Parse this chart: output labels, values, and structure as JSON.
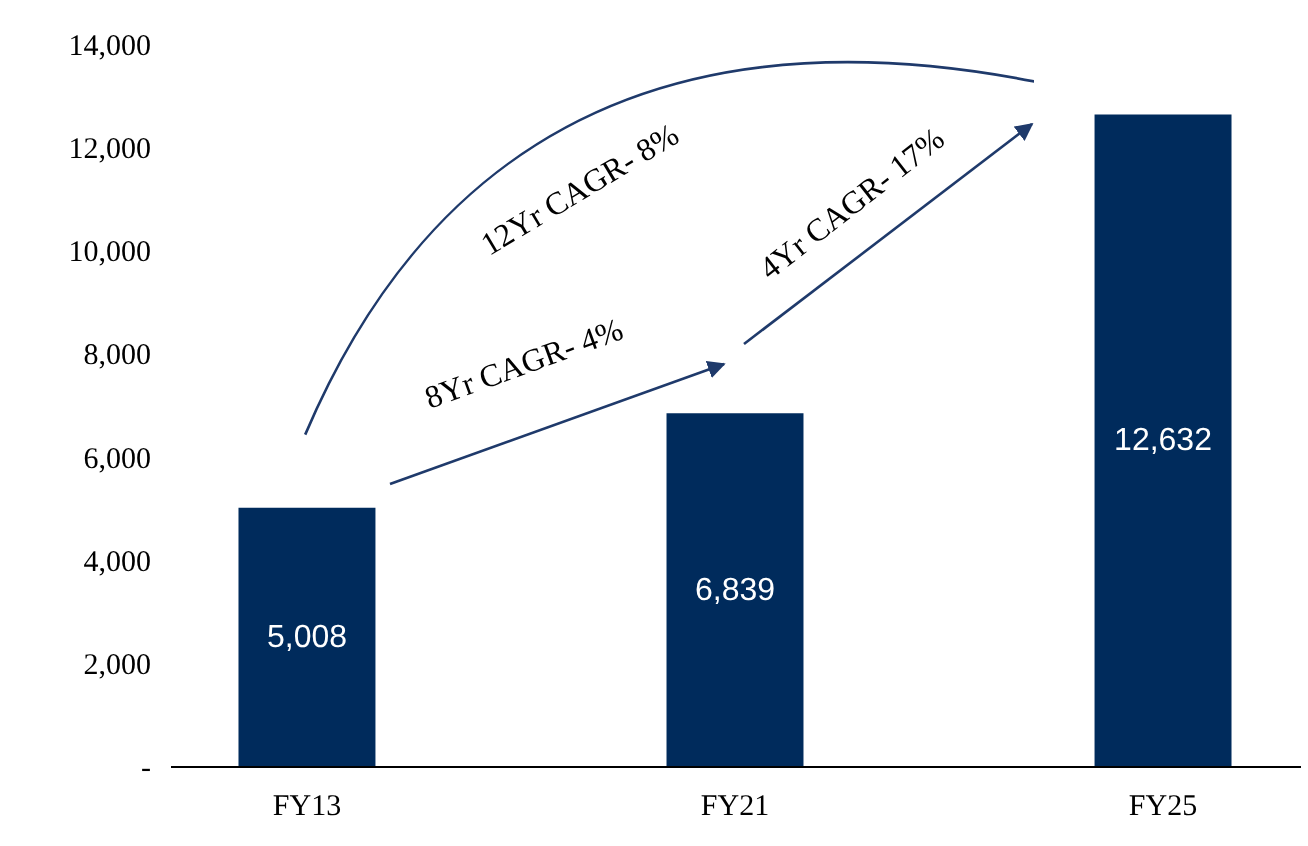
{
  "chart_data": {
    "type": "bar",
    "categories": [
      "FY13",
      "FY21",
      "FY25"
    ],
    "values": [
      5008,
      6839,
      12632
    ],
    "color": "#002b5c",
    "value_labels": [
      "5,008",
      "6,839",
      "12,632"
    ],
    "ylim": [
      0,
      14000
    ],
    "yticks": [
      {
        "value": 0,
        "label": "-"
      },
      {
        "value": 2000,
        "label": "2,000"
      },
      {
        "value": 4000,
        "label": "4,000"
      },
      {
        "value": 6000,
        "label": "6,000"
      },
      {
        "value": 8000,
        "label": "8,000"
      },
      {
        "value": 10000,
        "label": "10,000"
      },
      {
        "value": 12000,
        "label": "12,000"
      },
      {
        "value": 14000,
        "label": "14,000"
      }
    ],
    "grid": false,
    "annotations": [
      "12Yr CAGR- 8%",
      "8Yr CAGR- 4%",
      "4Yr CAGR- 17%"
    ]
  }
}
